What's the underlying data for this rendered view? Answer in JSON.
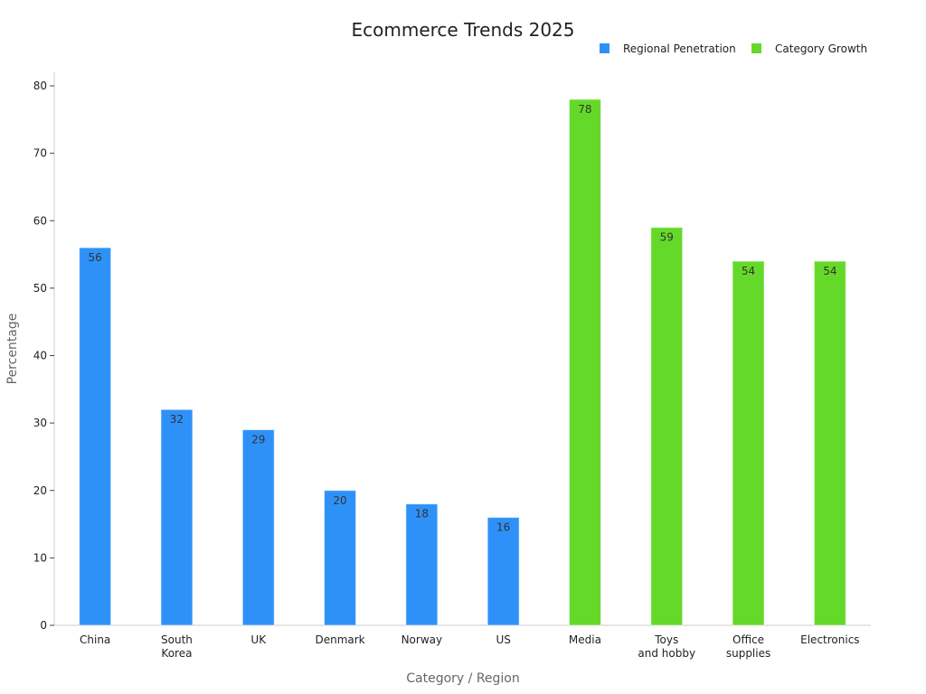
{
  "chart_data": {
    "type": "bar",
    "title": "Ecommerce Trends 2025",
    "xlabel": "Category / Region",
    "ylabel": "Percentage",
    "ylim": [
      0,
      80
    ],
    "yticks": [
      0,
      10,
      20,
      30,
      40,
      50,
      60,
      70,
      80
    ],
    "grid": false,
    "legend_position": "top-right",
    "categories": [
      [
        "China"
      ],
      [
        "South",
        "Korea"
      ],
      [
        "UK"
      ],
      [
        "Denmark"
      ],
      [
        "Norway"
      ],
      [
        "US"
      ],
      [
        "Media"
      ],
      [
        "Toys",
        "and hobby"
      ],
      [
        "Office",
        "supplies"
      ],
      [
        "Electronics"
      ]
    ],
    "series": [
      {
        "name": "Regional Penetration",
        "color": "#2e91f8",
        "values": [
          56,
          32,
          29,
          20,
          18,
          16,
          null,
          null,
          null,
          null
        ]
      },
      {
        "name": "Category Growth",
        "color": "#65d929",
        "values": [
          null,
          null,
          null,
          null,
          null,
          null,
          78,
          59,
          54,
          54
        ]
      }
    ]
  }
}
